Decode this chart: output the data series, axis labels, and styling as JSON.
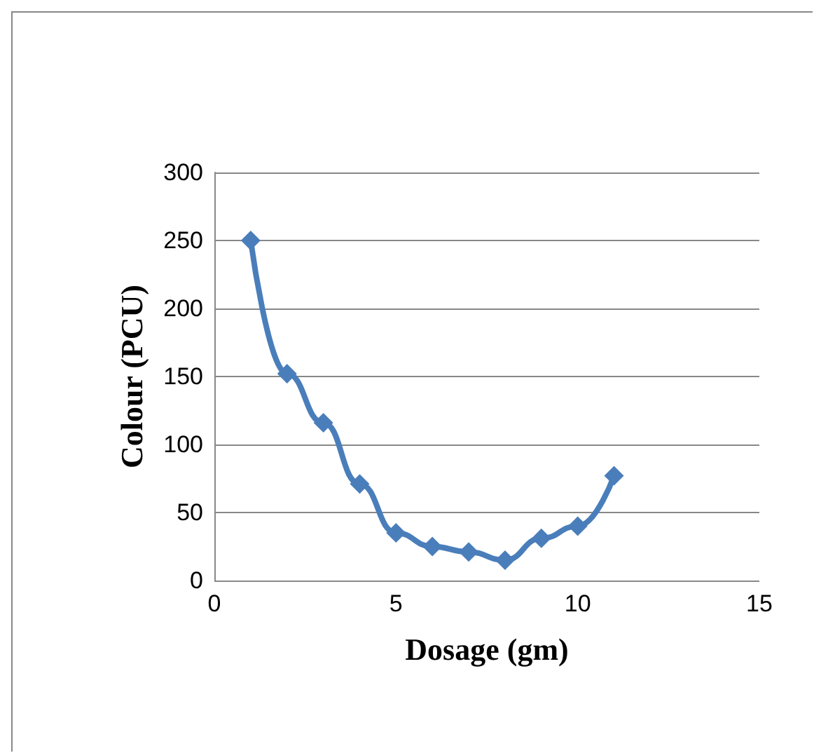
{
  "chart_data": {
    "type": "line",
    "xlabel": "Dosage (gm)",
    "ylabel": "Colour (PCU)",
    "x": [
      1,
      2,
      3,
      4,
      5,
      6,
      7,
      8,
      9,
      10,
      11
    ],
    "series": [
      {
        "color": "#4a7ebb",
        "values": [
          250,
          152,
          116,
          71,
          35,
          25,
          21,
          15,
          31,
          40,
          77
        ]
      }
    ],
    "xlim": [
      0,
      15
    ],
    "xticks": [
      0,
      5,
      10,
      15
    ],
    "ylim": [
      0,
      300
    ],
    "yticks": [
      0,
      50,
      100,
      150,
      200,
      250,
      300
    ],
    "grid": "y",
    "marker": "diamond",
    "line_style": "solid"
  }
}
